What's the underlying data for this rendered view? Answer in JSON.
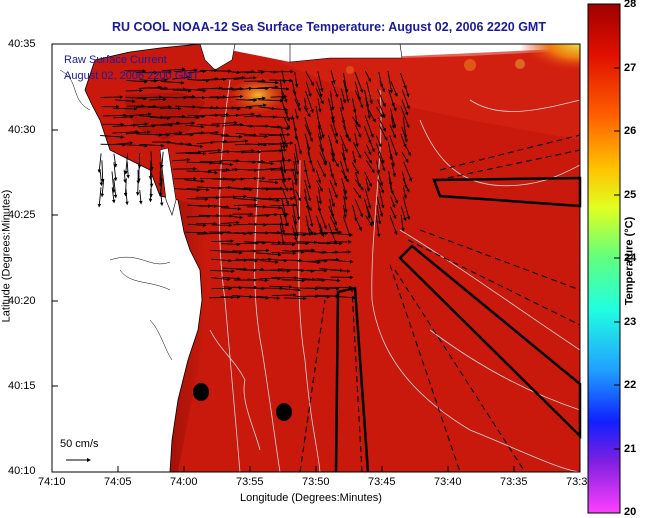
{
  "title": "RU COOL  NOAA-12  Sea Surface Temperature:  August 02, 2006 2220 GMT",
  "legend": {
    "line1": "Raw Surface Current",
    "line2": "August 02, 2006 2200 GMT"
  },
  "scale_vector_label": "50 cm/s",
  "axes": {
    "xlabel": "Longitude (Degrees:Minutes)",
    "ylabel": "Latitude (Degrees:Minutes)",
    "xticks": [
      "74:10",
      "74:05",
      "74:00",
      "73:55",
      "73:50",
      "73:45",
      "73:40",
      "73:35",
      "73:3"
    ],
    "yticks": [
      "40:35",
      "40:30",
      "40:25",
      "40:20",
      "40:15",
      "40:10"
    ]
  },
  "colorbar": {
    "label": "Temperature (°C)",
    "ticks": [
      "28",
      "27",
      "26",
      "25",
      "24",
      "23",
      "22",
      "21",
      "20"
    ],
    "min": 20,
    "max": 28
  },
  "colors": {
    "title": "#1a1aa0",
    "sst_dominant": "#c8180c"
  }
}
